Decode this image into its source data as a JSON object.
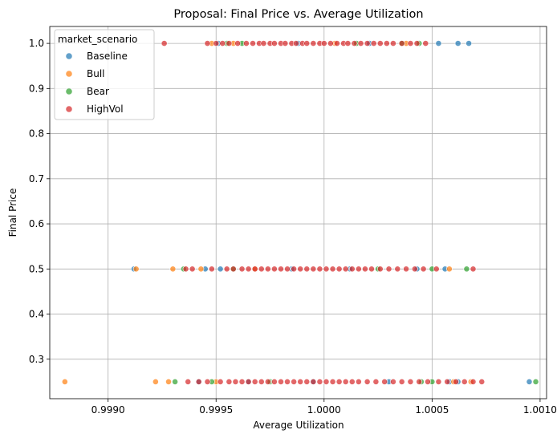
{
  "chart_data": {
    "type": "scatter",
    "title": "Proposal: Final Price vs. Average Utilization",
    "xlabel": "Average Utilization",
    "ylabel": "Final Price",
    "xlim": [
      0.99873,
      1.00103
    ],
    "ylim": [
      0.2125,
      1.0375
    ],
    "xticks": [
      "0.9990",
      "0.9995",
      "1.0000",
      "1.0005",
      "1.0010"
    ],
    "xtick_values": [
      0.999,
      0.9995,
      1.0,
      1.0005,
      1.001
    ],
    "yticks": [
      "0.3",
      "0.4",
      "0.5",
      "0.6",
      "0.7",
      "0.8",
      "0.9",
      "1.0"
    ],
    "ytick_values": [
      0.3,
      0.4,
      0.5,
      0.6,
      0.7,
      0.8,
      0.9,
      1.0
    ],
    "grid": true,
    "legend": {
      "title": "market_scenario",
      "placement": "top-left"
    },
    "point_opacity": 0.7,
    "series": [
      {
        "name": "Baseline",
        "color": "#1f77b4",
        "points": [
          [
            0.99912,
            0.5
          ],
          [
            0.99945,
            0.5
          ],
          [
            0.99952,
            0.5
          ],
          [
            0.99985,
            0.5
          ],
          [
            1.00012,
            0.5
          ],
          [
            1.00043,
            0.5
          ],
          [
            1.00056,
            0.5
          ],
          [
            0.99951,
            1.0
          ],
          [
            0.99988,
            1.0
          ],
          [
            1.00021,
            1.0
          ],
          [
            1.00053,
            1.0
          ],
          [
            1.00062,
            1.0
          ],
          [
            1.00067,
            1.0
          ],
          [
            0.99942,
            0.25
          ],
          [
            0.99965,
            0.25
          ],
          [
            0.99995,
            0.25
          ],
          [
            1.0003,
            0.25
          ],
          [
            1.00058,
            0.25
          ],
          [
            1.00062,
            0.25
          ],
          [
            1.00095,
            0.25
          ]
        ]
      },
      {
        "name": "Bull",
        "color": "#ff7f0e",
        "points": [
          [
            0.9988,
            0.25
          ],
          [
            0.99922,
            0.25
          ],
          [
            0.99928,
            0.25
          ],
          [
            0.9995,
            0.25
          ],
          [
            1.0006,
            0.25
          ],
          [
            1.00068,
            0.25
          ],
          [
            0.99913,
            0.5
          ],
          [
            0.9993,
            0.5
          ],
          [
            0.99943,
            0.5
          ],
          [
            0.99968,
            0.5
          ],
          [
            1.00058,
            0.5
          ],
          [
            0.99948,
            1.0
          ],
          [
            0.99958,
            1.0
          ],
          [
            1.00005,
            1.0
          ],
          [
            1.00038,
            1.0
          ]
        ]
      },
      {
        "name": "Bear",
        "color": "#2ca02c",
        "points": [
          [
            0.99931,
            0.25
          ],
          [
            0.99948,
            0.25
          ],
          [
            0.99975,
            0.25
          ],
          [
            1.00045,
            0.25
          ],
          [
            1.0005,
            0.25
          ],
          [
            1.00098,
            0.25
          ],
          [
            0.99935,
            0.5
          ],
          [
            0.99958,
            0.5
          ],
          [
            1.00025,
            0.5
          ],
          [
            1.0005,
            0.5
          ],
          [
            1.00066,
            0.5
          ],
          [
            0.99955,
            1.0
          ],
          [
            0.99962,
            1.0
          ],
          [
            1.00015,
            1.0
          ],
          [
            1.00036,
            1.0
          ],
          [
            1.00044,
            1.0
          ]
        ]
      },
      {
        "name": "HighVol",
        "color": "#d62728",
        "points": [
          [
            0.99926,
            1.0
          ],
          [
            0.99946,
            1.0
          ],
          [
            0.9995,
            1.0
          ],
          [
            0.99953,
            1.0
          ],
          [
            0.99956,
            1.0
          ],
          [
            0.9996,
            1.0
          ],
          [
            0.99964,
            1.0
          ],
          [
            0.99967,
            1.0
          ],
          [
            0.9997,
            1.0
          ],
          [
            0.99972,
            1.0
          ],
          [
            0.99975,
            1.0
          ],
          [
            0.99977,
            1.0
          ],
          [
            0.9998,
            1.0
          ],
          [
            0.99982,
            1.0
          ],
          [
            0.99985,
            1.0
          ],
          [
            0.99987,
            1.0
          ],
          [
            0.9999,
            1.0
          ],
          [
            0.99992,
            1.0
          ],
          [
            0.99995,
            1.0
          ],
          [
            0.99998,
            1.0
          ],
          [
            1.0,
            1.0
          ],
          [
            1.00003,
            1.0
          ],
          [
            1.00006,
            1.0
          ],
          [
            1.00009,
            1.0
          ],
          [
            1.00011,
            1.0
          ],
          [
            1.00014,
            1.0
          ],
          [
            1.00017,
            1.0
          ],
          [
            1.0002,
            1.0
          ],
          [
            1.00023,
            1.0
          ],
          [
            1.00026,
            1.0
          ],
          [
            1.00029,
            1.0
          ],
          [
            1.00032,
            1.0
          ],
          [
            1.00036,
            1.0
          ],
          [
            1.0004,
            1.0
          ],
          [
            1.00043,
            1.0
          ],
          [
            1.00047,
            1.0
          ],
          [
            0.99936,
            0.5
          ],
          [
            0.99939,
            0.5
          ],
          [
            0.99948,
            0.5
          ],
          [
            0.99955,
            0.5
          ],
          [
            0.99958,
            0.5
          ],
          [
            0.99962,
            0.5
          ],
          [
            0.99965,
            0.5
          ],
          [
            0.99968,
            0.5
          ],
          [
            0.99971,
            0.5
          ],
          [
            0.99974,
            0.5
          ],
          [
            0.99977,
            0.5
          ],
          [
            0.9998,
            0.5
          ],
          [
            0.99983,
            0.5
          ],
          [
            0.99986,
            0.5
          ],
          [
            0.99989,
            0.5
          ],
          [
            0.99992,
            0.5
          ],
          [
            0.99995,
            0.5
          ],
          [
            0.99998,
            0.5
          ],
          [
            1.00001,
            0.5
          ],
          [
            1.00004,
            0.5
          ],
          [
            1.00007,
            0.5
          ],
          [
            1.0001,
            0.5
          ],
          [
            1.00013,
            0.5
          ],
          [
            1.00016,
            0.5
          ],
          [
            1.00019,
            0.5
          ],
          [
            1.00022,
            0.5
          ],
          [
            1.00026,
            0.5
          ],
          [
            1.0003,
            0.5
          ],
          [
            1.00034,
            0.5
          ],
          [
            1.00038,
            0.5
          ],
          [
            1.00042,
            0.5
          ],
          [
            1.00046,
            0.5
          ],
          [
            1.00052,
            0.5
          ],
          [
            1.00069,
            0.5
          ],
          [
            0.99937,
            0.25
          ],
          [
            0.99942,
            0.25
          ],
          [
            0.99946,
            0.25
          ],
          [
            0.99952,
            0.25
          ],
          [
            0.99956,
            0.25
          ],
          [
            0.99959,
            0.25
          ],
          [
            0.99962,
            0.25
          ],
          [
            0.99965,
            0.25
          ],
          [
            0.99968,
            0.25
          ],
          [
            0.99971,
            0.25
          ],
          [
            0.99974,
            0.25
          ],
          [
            0.99977,
            0.25
          ],
          [
            0.9998,
            0.25
          ],
          [
            0.99983,
            0.25
          ],
          [
            0.99986,
            0.25
          ],
          [
            0.99989,
            0.25
          ],
          [
            0.99992,
            0.25
          ],
          [
            0.99995,
            0.25
          ],
          [
            0.99998,
            0.25
          ],
          [
            1.00001,
            0.25
          ],
          [
            1.00004,
            0.25
          ],
          [
            1.00007,
            0.25
          ],
          [
            1.0001,
            0.25
          ],
          [
            1.00013,
            0.25
          ],
          [
            1.00016,
            0.25
          ],
          [
            1.0002,
            0.25
          ],
          [
            1.00024,
            0.25
          ],
          [
            1.00028,
            0.25
          ],
          [
            1.00032,
            0.25
          ],
          [
            1.00036,
            0.25
          ],
          [
            1.0004,
            0.25
          ],
          [
            1.00044,
            0.25
          ],
          [
            1.00048,
            0.25
          ],
          [
            1.00053,
            0.25
          ],
          [
            1.00057,
            0.25
          ],
          [
            1.00061,
            0.25
          ],
          [
            1.00065,
            0.25
          ],
          [
            1.00069,
            0.25
          ],
          [
            1.00073,
            0.25
          ]
        ]
      }
    ]
  }
}
